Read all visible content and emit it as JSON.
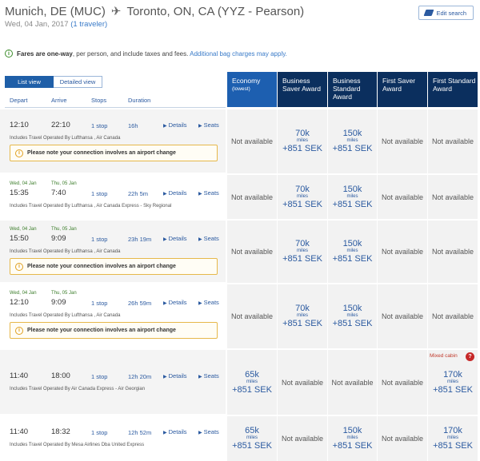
{
  "header": {
    "origin": "Munich, DE (MUC)",
    "destination": "Toronto, ON, CA (YYZ - Pearson)",
    "date": "Wed, 04 Jan, 2017",
    "travelers": "(1 traveler)",
    "edit_label": "Edit search"
  },
  "notice": {
    "bold": "Fares are one-way",
    "text": ", per person, and include taxes and fees.",
    "link": "Additional bag charges may apply."
  },
  "tabs": {
    "list": "List view",
    "detailed": "Detailed view"
  },
  "columns": {
    "depart": "Depart",
    "arrive": "Arrive",
    "stops": "Stops",
    "duration": "Duration"
  },
  "fare_headers": [
    {
      "title": "Economy",
      "sub": "(lowest)"
    },
    {
      "title": "Business Saver Award",
      "sub": ""
    },
    {
      "title": "Business Standard Award",
      "sub": ""
    },
    {
      "title": "First Saver Award",
      "sub": ""
    },
    {
      "title": "First Standard Award",
      "sub": ""
    }
  ],
  "labels": {
    "details": "Details",
    "seats": "Seats",
    "not_available": "Not available",
    "miles": "miles",
    "warning": "Please note your connection involves an airport change",
    "mixed_cabin": "Mixed cabin"
  },
  "flights": [
    {
      "dep_date": "",
      "arr_date": "",
      "depart": "12:10",
      "arrive": "22:10",
      "stops": "1 stop",
      "duration": "16h",
      "operated": "Includes Travel Operated By Lufthansa , Air Canada",
      "warning": true,
      "fares": [
        null,
        {
          "miles": "70k",
          "tax": "+851 SEK"
        },
        {
          "miles": "150k",
          "tax": "+851 SEK"
        },
        null,
        null
      ]
    },
    {
      "dep_date": "Wed, 04 Jan",
      "arr_date": "Thu, 05 Jan",
      "depart": "15:35",
      "arrive": "7:40",
      "stops": "1 stop",
      "duration": "22h 5m",
      "operated": "Includes Travel Operated By Lufthansa , Air Canada Express - Sky Regional",
      "warning": false,
      "fares": [
        null,
        {
          "miles": "70k",
          "tax": "+851 SEK"
        },
        {
          "miles": "150k",
          "tax": "+851 SEK"
        },
        null,
        null
      ]
    },
    {
      "dep_date": "Wed, 04 Jan",
      "arr_date": "Thu, 05 Jan",
      "depart": "15:50",
      "arrive": "9:09",
      "stops": "1 stop",
      "duration": "23h 19m",
      "operated": "Includes Travel Operated By Lufthansa , Air Canada",
      "warning": true,
      "fares": [
        null,
        {
          "miles": "70k",
          "tax": "+851 SEK"
        },
        {
          "miles": "150k",
          "tax": "+851 SEK"
        },
        null,
        null
      ]
    },
    {
      "dep_date": "Wed, 04 Jan",
      "arr_date": "Thu, 05 Jan",
      "depart": "12:10",
      "arrive": "9:09",
      "stops": "1 stop",
      "duration": "26h 59m",
      "operated": "Includes Travel Operated By Lufthansa , Air Canada",
      "warning": true,
      "fares": [
        null,
        {
          "miles": "70k",
          "tax": "+851 SEK"
        },
        {
          "miles": "150k",
          "tax": "+851 SEK"
        },
        null,
        null
      ]
    },
    {
      "dep_date": "",
      "arr_date": "",
      "depart": "11:40",
      "arrive": "18:00",
      "stops": "1 stop",
      "duration": "12h 20m",
      "operated": "Includes Travel Operated By Air Canada Express - Air Georgian",
      "warning": false,
      "fares": [
        {
          "miles": "65k",
          "tax": "+851 SEK"
        },
        null,
        null,
        null,
        {
          "miles": "170k",
          "tax": "+851 SEK",
          "mixed": true
        }
      ]
    },
    {
      "dep_date": "",
      "arr_date": "",
      "depart": "11:40",
      "arrive": "18:32",
      "stops": "1 stop",
      "duration": "12h 52m",
      "operated": "Includes Travel Operated By Mesa Airlines Dba United Express",
      "warning": false,
      "fares": [
        {
          "miles": "65k",
          "tax": "+851 SEK"
        },
        null,
        {
          "miles": "150k",
          "tax": "+851 SEK"
        },
        null,
        {
          "miles": "170k",
          "tax": "+851 SEK"
        }
      ]
    }
  ]
}
